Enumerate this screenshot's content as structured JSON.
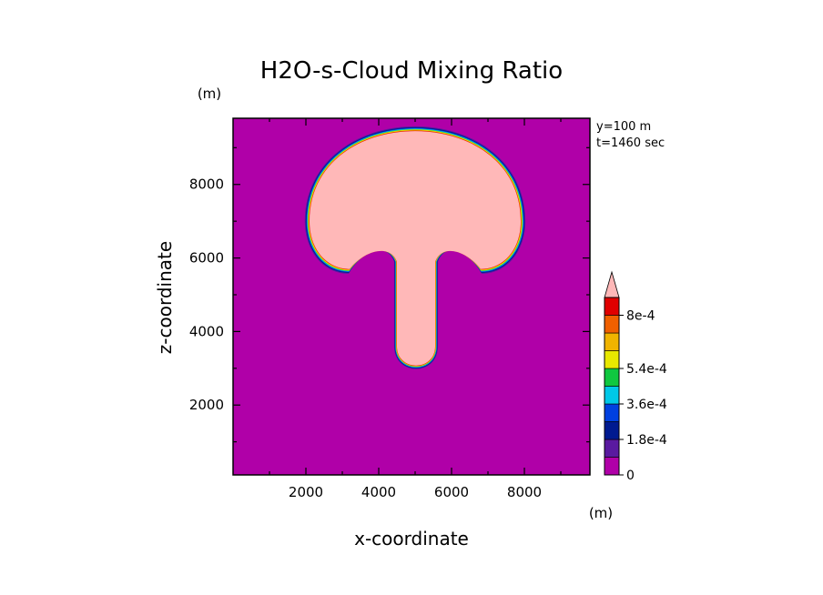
{
  "chart_data": {
    "type": "heatmap",
    "title": "H2O-s-Cloud Mixing Ratio",
    "xlabel": "x-coordinate",
    "ylabel": "z-coordinate",
    "xunit": "(m)",
    "yunit": "(m)",
    "info": [
      "y=100 m",
      "t=1460 sec"
    ],
    "xlim": [
      0,
      9800
    ],
    "ylim": [
      100,
      9800
    ],
    "xticks": [
      2000,
      4000,
      6000,
      8000
    ],
    "yticks": [
      2000,
      4000,
      6000,
      8000
    ],
    "xtick_labels": [
      "2000",
      "4000",
      "6000",
      "8000"
    ],
    "ytick_labels": [
      "2000",
      "4000",
      "6000",
      "8000"
    ],
    "colorbar": {
      "levels": [
        0,
        9e-05,
        0.00018,
        0.00027,
        0.00036,
        0.00045,
        0.00054,
        0.00063,
        0.00072,
        0.0008
      ],
      "colors": [
        "#b000a8",
        "#5a1aa0",
        "#001a90",
        "#0040e0",
        "#00c8e8",
        "#10c840",
        "#e8e800",
        "#f0b400",
        "#f06000",
        "#e00000",
        "#ffb8b8"
      ],
      "labels": [
        "0",
        "1.8e-4",
        "3.6e-4",
        "5.4e-4",
        "8e-4"
      ],
      "label_values": [
        0,
        0.00018,
        0.00036,
        0.00054,
        0.0008
      ],
      "extend": "max"
    },
    "background_value": 0,
    "plume": {
      "description_shape": "mushroom",
      "cap_center_x": 5000,
      "cap_top_z": 9450,
      "cap_bottom_z": 5700,
      "cap_left_x": 2100,
      "cap_right_x": 7900,
      "stem_left_x": 4500,
      "stem_right_x": 5550,
      "stem_bottom_z": 2750,
      "core_value": 0.0008
    }
  }
}
